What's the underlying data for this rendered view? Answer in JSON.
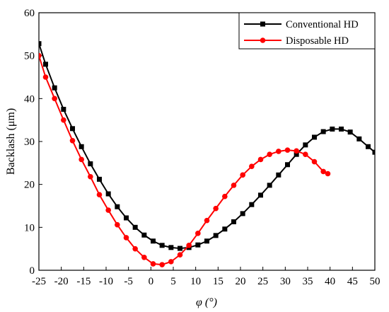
{
  "chart_data": {
    "type": "line",
    "title": "",
    "xlabel": "φ (°)",
    "ylabel": "Backlash (μm)",
    "xlim": [
      -25,
      50
    ],
    "ylim": [
      0,
      60
    ],
    "xticks": [
      -25,
      -20,
      -15,
      -10,
      -5,
      0,
      5,
      10,
      15,
      20,
      25,
      30,
      35,
      40,
      45,
      50
    ],
    "yticks": [
      0,
      10,
      20,
      30,
      40,
      50,
      60
    ],
    "grid": false,
    "legend_position": "top-right",
    "series": [
      {
        "name": "Conventional HD",
        "color": "#000000",
        "marker": "square",
        "x": [
          -25,
          -23.5,
          -21.5,
          -19.5,
          -17.5,
          -15.5,
          -13.5,
          -11.5,
          -9.5,
          -7.5,
          -5.5,
          -3.5,
          -1.5,
          0.5,
          2.5,
          4.5,
          6.5,
          8.5,
          10.5,
          12.5,
          14.5,
          16.5,
          18.5,
          20.5,
          22.5,
          24.5,
          26.5,
          28.5,
          30.5,
          32.5,
          34.5,
          36.5,
          38.5,
          40.5,
          42.5,
          44.5,
          46.5,
          48.5,
          50
        ],
        "y": [
          52.8,
          48.0,
          42.5,
          37.5,
          33.0,
          28.8,
          24.8,
          21.2,
          17.8,
          14.8,
          12.2,
          10.0,
          8.2,
          6.8,
          5.8,
          5.3,
          5.1,
          5.3,
          5.9,
          6.8,
          8.1,
          9.6,
          11.3,
          13.2,
          15.3,
          17.5,
          19.8,
          22.2,
          24.6,
          27.0,
          29.2,
          31.0,
          32.3,
          32.9,
          32.9,
          32.2,
          30.6,
          28.8,
          27.5
        ]
      },
      {
        "name": "Disposable HD",
        "color": "#ff0000",
        "marker": "circle",
        "x": [
          -25,
          -23.5,
          -21.5,
          -19.5,
          -17.5,
          -15.5,
          -13.5,
          -11.5,
          -9.5,
          -7.5,
          -5.5,
          -3.5,
          -1.5,
          0.5,
          2.5,
          4.5,
          6.5,
          8.5,
          10.5,
          12.5,
          14.5,
          16.5,
          18.5,
          20.5,
          22.5,
          24.5,
          26.5,
          28.5,
          30.5,
          32.5,
          34.5,
          36.5,
          38.5,
          39.5
        ],
        "y": [
          50.0,
          45.0,
          40.0,
          35.0,
          30.2,
          25.8,
          21.8,
          17.6,
          14.0,
          10.6,
          7.6,
          5.0,
          3.0,
          1.5,
          1.3,
          2.0,
          3.6,
          5.8,
          8.6,
          11.6,
          14.4,
          17.2,
          19.8,
          22.2,
          24.2,
          25.8,
          27.0,
          27.7,
          28.0,
          27.8,
          27.0,
          25.3,
          23.0,
          22.5
        ]
      }
    ]
  }
}
